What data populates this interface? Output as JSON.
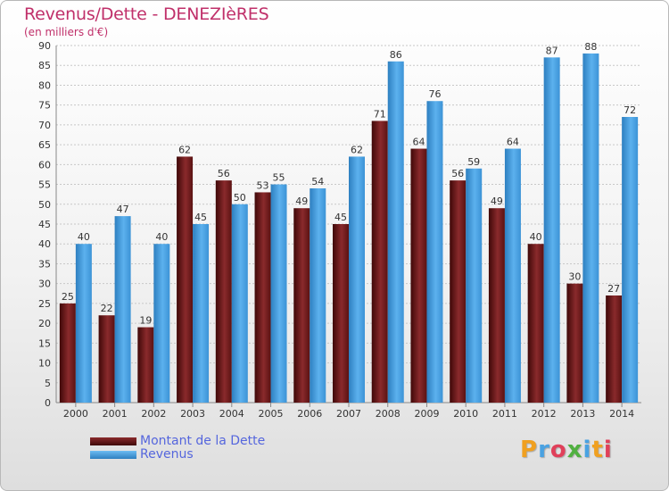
{
  "header": {
    "title": "Revenus/Dette - DENEZIèRES",
    "subtitle": "(en milliers d'€)"
  },
  "colors": {
    "dette": "#7a1f22",
    "revenus": "#4aa2e2",
    "title": "#c0306a",
    "legend_text": "#5566dd"
  },
  "chart_data": {
    "type": "bar",
    "title": "Revenus/Dette - DENEZIèRES",
    "subtitle": "(en milliers d'€)",
    "categories": [
      "2000",
      "2001",
      "2002",
      "2003",
      "2004",
      "2005",
      "2006",
      "2007",
      "2008",
      "2009",
      "2010",
      "2011",
      "2012",
      "2013",
      "2014"
    ],
    "series": [
      {
        "name": "Montant de la Dette",
        "color": "#7a1f22",
        "values": [
          25,
          22,
          19,
          62,
          56,
          53,
          49,
          45,
          71,
          64,
          56,
          49,
          40,
          30,
          27
        ]
      },
      {
        "name": "Revenus",
        "color": "#4aa2e2",
        "values": [
          40,
          47,
          40,
          45,
          50,
          55,
          54,
          62,
          86,
          76,
          59,
          64,
          87,
          88,
          72
        ]
      }
    ],
    "ylim": [
      0,
      90
    ],
    "ytick_step": 5,
    "grid": true,
    "legend_position": "bottom-left"
  },
  "legend": [
    {
      "label": "Montant de la Dette"
    },
    {
      "label": "Revenus"
    }
  ],
  "logo": {
    "letters": [
      "P",
      "r",
      "o",
      "x",
      "i",
      "t",
      "i"
    ],
    "colors": [
      "#f0a020",
      "#4aa2e2",
      "#e0405a",
      "#50b040",
      "#4aa2e2",
      "#f0a020",
      "#e0405a"
    ]
  }
}
